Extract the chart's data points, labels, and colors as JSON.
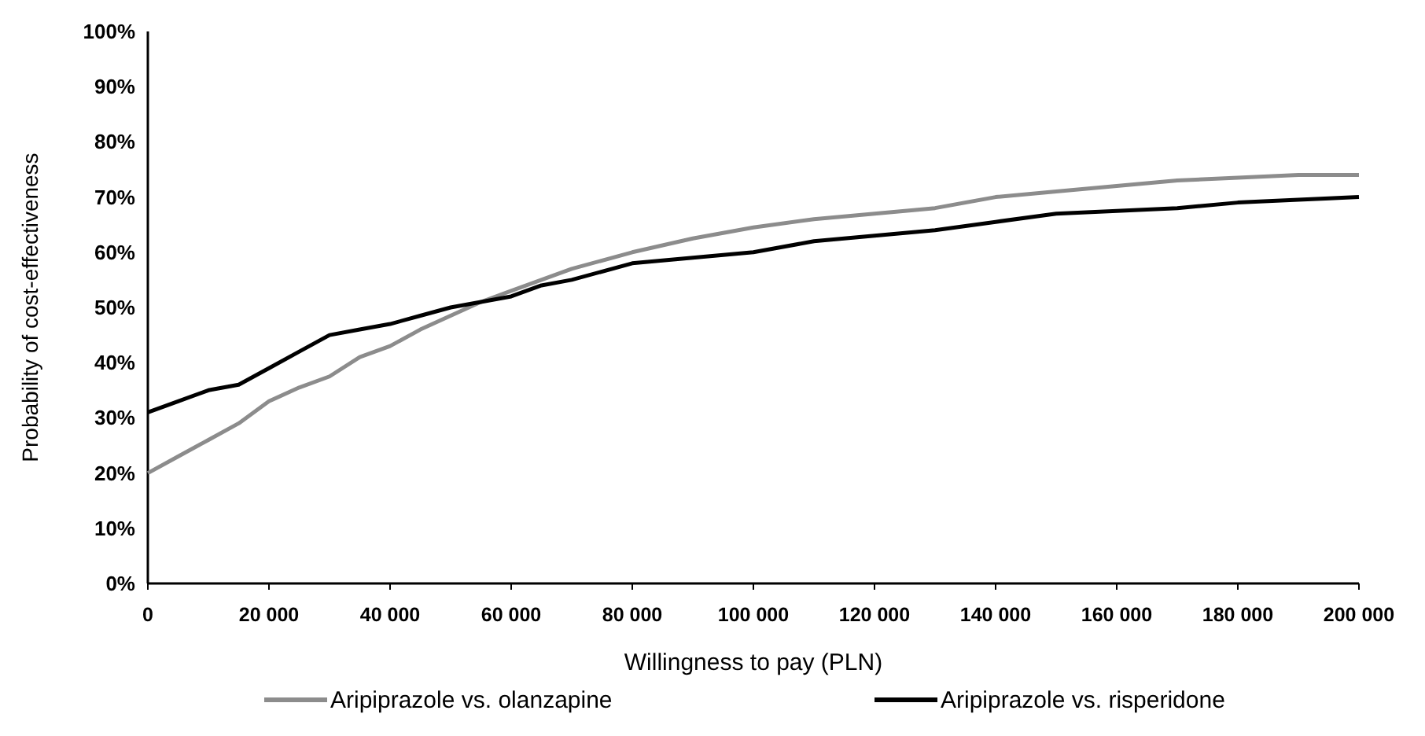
{
  "chart_data": {
    "type": "line",
    "xlabel": "Willingness to pay (PLN)",
    "ylabel": "Probability of cost-effectiveness",
    "x": [
      0,
      5000,
      10000,
      15000,
      20000,
      25000,
      30000,
      35000,
      40000,
      45000,
      50000,
      55000,
      60000,
      65000,
      70000,
      80000,
      90000,
      100000,
      110000,
      120000,
      130000,
      140000,
      150000,
      160000,
      170000,
      180000,
      190000,
      200000
    ],
    "series": [
      {
        "name": "Aripiprazole vs. olanzapine",
        "color": "#8c8c8c",
        "values": [
          20,
          23,
          26,
          29,
          33,
          35.5,
          37.5,
          41,
          43,
          46,
          48.5,
          51,
          53,
          55,
          57,
          60,
          62.5,
          64.5,
          66,
          67,
          68,
          70,
          71,
          72,
          73,
          73.5,
          74,
          74
        ]
      },
      {
        "name": "Aripiprazole vs. risperidone",
        "color": "#000000",
        "values": [
          31,
          33,
          35,
          36,
          39,
          42,
          45,
          46,
          47,
          48.5,
          50,
          51,
          52,
          54,
          55,
          58,
          59,
          60,
          62,
          63,
          64,
          65.5,
          67,
          67.5,
          68,
          69,
          69.5,
          70
        ]
      }
    ],
    "xlim": [
      0,
      200000
    ],
    "xticks": [
      0,
      {
        "value": 20000,
        "label": "20 000"
      },
      {
        "value": 40000,
        "label": "40 000"
      },
      {
        "value": 60000,
        "label": "60 000"
      },
      {
        "value": 80000,
        "label": "80 000"
      },
      {
        "value": 100000,
        "label": "100 000"
      },
      {
        "value": 120000,
        "label": "120 000"
      },
      {
        "value": 140000,
        "label": "140 000"
      },
      {
        "value": 160000,
        "label": "160 000"
      },
      {
        "value": 180000,
        "label": "180 000"
      },
      {
        "value": 200000,
        "label": "200 000"
      }
    ],
    "ylim": [
      0,
      100
    ],
    "yticks": [
      {
        "value": 0,
        "label": "0%"
      },
      {
        "value": 10,
        "label": "10%"
      },
      {
        "value": 20,
        "label": "20%"
      },
      {
        "value": 30,
        "label": "30%"
      },
      {
        "value": 40,
        "label": "40%"
      },
      {
        "value": 50,
        "label": "50%"
      },
      {
        "value": 60,
        "label": "60%"
      },
      {
        "value": 70,
        "label": "70%"
      },
      {
        "value": 80,
        "label": "80%"
      },
      {
        "value": 90,
        "label": "90%"
      },
      {
        "value": 100,
        "label": "100%"
      }
    ],
    "grid": false,
    "legend": "bottom",
    "marker": "none",
    "line_style": "solid"
  }
}
